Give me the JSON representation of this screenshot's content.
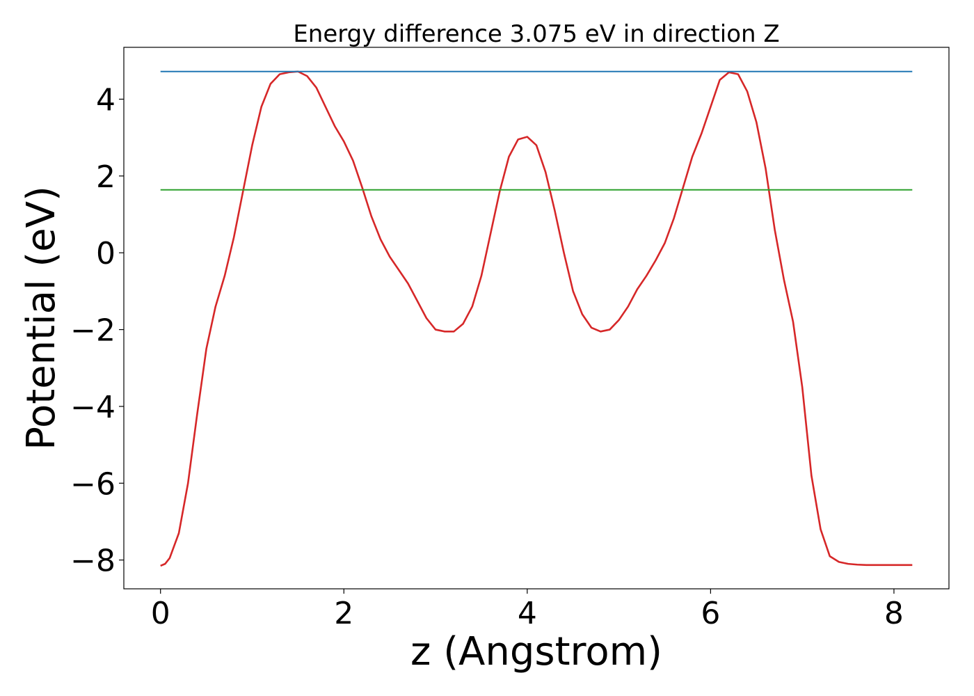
{
  "chart_data": {
    "type": "line",
    "title": "Energy difference 3.075 eV in direction Z",
    "xlabel": "z (Angstrom)",
    "ylabel": "Potential (eV)",
    "xlim": [
      -0.4,
      8.6
    ],
    "ylim": [
      -8.75,
      5.35
    ],
    "x_ticks": [
      0,
      2,
      4,
      6,
      8
    ],
    "x_tick_labels": [
      "0",
      "2",
      "4",
      "6",
      "8"
    ],
    "y_ticks": [
      -8,
      -6,
      -4,
      -2,
      0,
      2,
      4
    ],
    "y_tick_labels": [
      "−8",
      "−6",
      "−4",
      "−2",
      "0",
      "2",
      "4"
    ],
    "grid": false,
    "series": [
      {
        "color": "#d62728",
        "x": [
          0,
          0.05,
          0.1,
          0.2,
          0.3,
          0.4,
          0.5,
          0.6,
          0.7,
          0.8,
          0.9,
          1.0,
          1.1,
          1.2,
          1.3,
          1.4,
          1.5,
          1.6,
          1.7,
          1.8,
          1.9,
          2.0,
          2.1,
          2.2,
          2.3,
          2.4,
          2.5,
          2.6,
          2.7,
          2.8,
          2.9,
          3.0,
          3.1,
          3.2,
          3.3,
          3.4,
          3.5,
          3.6,
          3.7,
          3.8,
          3.9,
          4.0,
          4.1,
          4.2,
          4.3,
          4.4,
          4.5,
          4.6,
          4.7,
          4.8,
          4.9,
          5.0,
          5.1,
          5.2,
          5.3,
          5.4,
          5.5,
          5.6,
          5.7,
          5.8,
          5.9,
          6.0,
          6.1,
          6.2,
          6.3,
          6.4,
          6.5,
          6.6,
          6.7,
          6.8,
          6.9,
          7.0,
          7.1,
          7.2,
          7.3,
          7.4,
          7.5,
          7.6,
          7.7,
          7.8,
          7.9,
          8.0,
          8.1,
          8.2
        ],
        "y": [
          -8.15,
          -8.1,
          -7.95,
          -7.3,
          -6.0,
          -4.2,
          -2.5,
          -1.4,
          -0.6,
          0.4,
          1.6,
          2.8,
          3.8,
          4.4,
          4.65,
          4.7,
          4.72,
          4.6,
          4.3,
          3.8,
          3.3,
          2.9,
          2.4,
          1.7,
          0.95,
          0.35,
          -0.1,
          -0.45,
          -0.8,
          -1.25,
          -1.7,
          -2.0,
          -2.05,
          -2.05,
          -1.85,
          -1.4,
          -0.6,
          0.5,
          1.6,
          2.5,
          2.95,
          3.02,
          2.8,
          2.1,
          1.1,
          0.0,
          -1.0,
          -1.6,
          -1.95,
          -2.05,
          -2.0,
          -1.75,
          -1.4,
          -0.95,
          -0.6,
          -0.2,
          0.25,
          0.9,
          1.7,
          2.5,
          3.1,
          3.8,
          4.5,
          4.7,
          4.65,
          4.2,
          3.4,
          2.2,
          0.6,
          -0.7,
          -1.8,
          -3.5,
          -5.8,
          -7.2,
          -7.9,
          -8.05,
          -8.1,
          -8.12,
          -8.13,
          -8.13,
          -8.13,
          -8.13,
          -8.13,
          -8.13
        ]
      },
      {
        "color": "#1f77b4",
        "x": [
          0,
          8.2
        ],
        "y": [
          4.72,
          4.72
        ]
      },
      {
        "color": "#2ca02c",
        "x": [
          0,
          8.2
        ],
        "y": [
          1.64,
          1.64
        ]
      }
    ]
  }
}
